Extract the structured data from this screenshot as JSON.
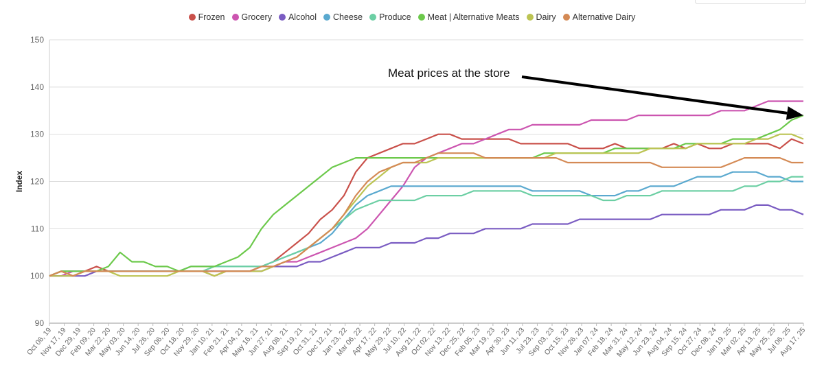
{
  "chart_data": {
    "type": "line",
    "ylabel": "Index",
    "ylim": [
      90,
      150
    ],
    "yticks": [
      90,
      100,
      110,
      120,
      130,
      140,
      150
    ],
    "grid": true,
    "legend_position": "top-center",
    "x_tick_labels": [
      "Oct 06, 19",
      "Nov 17, 19",
      "Dec 29, 19",
      "Feb 09, 20",
      "Mar 22, 20",
      "May 03, 20",
      "Jun 14, 20",
      "Jul 26, 20",
      "Sep 06, 20",
      "Oct 18, 20",
      "Nov 29, 20",
      "Jan 10, 21",
      "Feb 21, 21",
      "Apr 04, 21",
      "May 16, 21",
      "Jun 27, 21",
      "Aug 08, 21",
      "Sep 19, 21",
      "Oct 31, 21",
      "Dec 12, 21",
      "Jan 23, 22",
      "Mar 06, 22",
      "Apr 17, 22",
      "May 29, 22",
      "Jul 10, 22",
      "Aug 21, 22",
      "Oct 02, 22",
      "Nov 13, 22",
      "Dec 25, 22",
      "Feb 05, 23",
      "Mar 19, 23",
      "Apr 30, 23",
      "Jun 11, 23",
      "Jul 23, 23",
      "Sep 03, 23",
      "Oct 15, 23",
      "Nov 26, 23",
      "Jan 07, 24",
      "Feb 18, 24",
      "Mar 31, 24",
      "May 12, 24",
      "Jun 23, 24",
      "Aug 04, 24",
      "Sep 15, 24",
      "Oct 27, 24",
      "Dec 08, 24",
      "Jan 19, 25",
      "Mar 02, 25",
      "Apr 13, 25",
      "May 25, 25",
      "Jul 06, 25",
      "Aug 17, 25"
    ],
    "annotation": {
      "text": "Meat prices at the store"
    },
    "series": [
      {
        "name": "Frozen",
        "color": "#c9504a",
        "values": [
          100,
          101,
          101,
          101,
          102,
          101,
          101,
          101,
          101,
          101,
          101,
          101,
          101,
          101,
          100,
          101,
          101,
          101,
          102,
          103,
          105,
          107,
          109,
          112,
          114,
          117,
          122,
          125,
          126,
          127,
          128,
          128,
          129,
          130,
          130,
          129,
          129,
          129,
          129,
          129,
          128,
          128,
          128,
          128,
          128,
          127,
          127,
          127,
          128,
          127,
          127,
          127,
          127,
          128,
          127,
          128,
          127,
          127,
          128,
          128,
          128,
          128,
          127,
          129,
          128
        ]
      },
      {
        "name": "Grocery",
        "color": "#cc55b0",
        "values": [
          100,
          100,
          101,
          101,
          101,
          101,
          101,
          101,
          101,
          101,
          101,
          101,
          101,
          101,
          101,
          101,
          101,
          101,
          102,
          102,
          103,
          103,
          104,
          105,
          106,
          107,
          108,
          110,
          113,
          116,
          119,
          123,
          125,
          126,
          127,
          128,
          128,
          129,
          130,
          131,
          131,
          132,
          132,
          132,
          132,
          132,
          133,
          133,
          133,
          133,
          134,
          134,
          134,
          134,
          134,
          134,
          134,
          135,
          135,
          135,
          136,
          137,
          137,
          137,
          137
        ]
      },
      {
        "name": "Alcohol",
        "color": "#7a5cc2",
        "values": [
          100,
          100,
          100,
          100,
          101,
          101,
          101,
          101,
          101,
          101,
          101,
          101,
          101,
          101,
          101,
          101,
          101,
          101,
          101,
          102,
          102,
          102,
          103,
          103,
          104,
          105,
          106,
          106,
          106,
          107,
          107,
          107,
          108,
          108,
          109,
          109,
          109,
          110,
          110,
          110,
          110,
          111,
          111,
          111,
          111,
          112,
          112,
          112,
          112,
          112,
          112,
          112,
          113,
          113,
          113,
          113,
          113,
          114,
          114,
          114,
          115,
          115,
          114,
          114,
          113
        ]
      },
      {
        "name": "Cheese",
        "color": "#5aa9cf",
        "values": [
          100,
          101,
          101,
          101,
          101,
          101,
          101,
          101,
          101,
          101,
          101,
          101,
          102,
          102,
          102,
          102,
          102,
          102,
          102,
          103,
          104,
          105,
          106,
          107,
          109,
          112,
          115,
          117,
          118,
          119,
          119,
          119,
          119,
          119,
          119,
          119,
          119,
          119,
          119,
          119,
          119,
          118,
          118,
          118,
          118,
          118,
          117,
          117,
          117,
          118,
          118,
          119,
          119,
          119,
          120,
          121,
          121,
          121,
          122,
          122,
          122,
          121,
          121,
          120,
          120
        ]
      },
      {
        "name": "Produce",
        "color": "#6ccfa4",
        "values": [
          100,
          101,
          100,
          101,
          101,
          101,
          101,
          101,
          101,
          101,
          101,
          101,
          101,
          101,
          102,
          102,
          102,
          102,
          102,
          103,
          104,
          105,
          106,
          108,
          110,
          112,
          114,
          115,
          116,
          116,
          116,
          116,
          117,
          117,
          117,
          117,
          118,
          118,
          118,
          118,
          118,
          117,
          117,
          117,
          117,
          117,
          117,
          116,
          116,
          117,
          117,
          117,
          118,
          118,
          118,
          118,
          118,
          118,
          118,
          119,
          119,
          120,
          120,
          121,
          121
        ]
      },
      {
        "name": "Meat | Alternative Meats",
        "color": "#6cc94b",
        "values": [
          100,
          101,
          101,
          101,
          101,
          102,
          105,
          103,
          103,
          102,
          102,
          101,
          102,
          102,
          102,
          103,
          104,
          106,
          110,
          113,
          115,
          117,
          119,
          121,
          123,
          124,
          125,
          125,
          125,
          125,
          125,
          125,
          125,
          125,
          125,
          125,
          125,
          125,
          125,
          125,
          125,
          125,
          126,
          126,
          126,
          126,
          126,
          126,
          127,
          127,
          127,
          127,
          127,
          127,
          128,
          128,
          128,
          128,
          129,
          129,
          129,
          130,
          131,
          133,
          134
        ]
      },
      {
        "name": "Dairy",
        "color": "#bcc453",
        "values": [
          100,
          100,
          100,
          101,
          101,
          101,
          100,
          100,
          100,
          100,
          100,
          101,
          101,
          101,
          100,
          101,
          101,
          101,
          101,
          102,
          103,
          104,
          106,
          108,
          110,
          113,
          116,
          119,
          121,
          123,
          124,
          124,
          124,
          125,
          125,
          125,
          125,
          125,
          125,
          125,
          125,
          125,
          125,
          126,
          126,
          126,
          126,
          126,
          126,
          126,
          126,
          127,
          127,
          127,
          127,
          128,
          128,
          128,
          128,
          128,
          129,
          129,
          130,
          130,
          129
        ]
      },
      {
        "name": "Alternative Dairy",
        "color": "#d48a55",
        "values": [
          100,
          101,
          100,
          101,
          101,
          101,
          101,
          101,
          101,
          101,
          101,
          101,
          101,
          101,
          101,
          101,
          101,
          101,
          102,
          102,
          103,
          104,
          106,
          108,
          110,
          113,
          117,
          120,
          122,
          123,
          124,
          124,
          125,
          126,
          126,
          126,
          126,
          125,
          125,
          125,
          125,
          125,
          125,
          125,
          124,
          124,
          124,
          124,
          124,
          124,
          124,
          124,
          123,
          123,
          123,
          123,
          123,
          123,
          124,
          125,
          125,
          125,
          125,
          124,
          124
        ]
      }
    ]
  }
}
